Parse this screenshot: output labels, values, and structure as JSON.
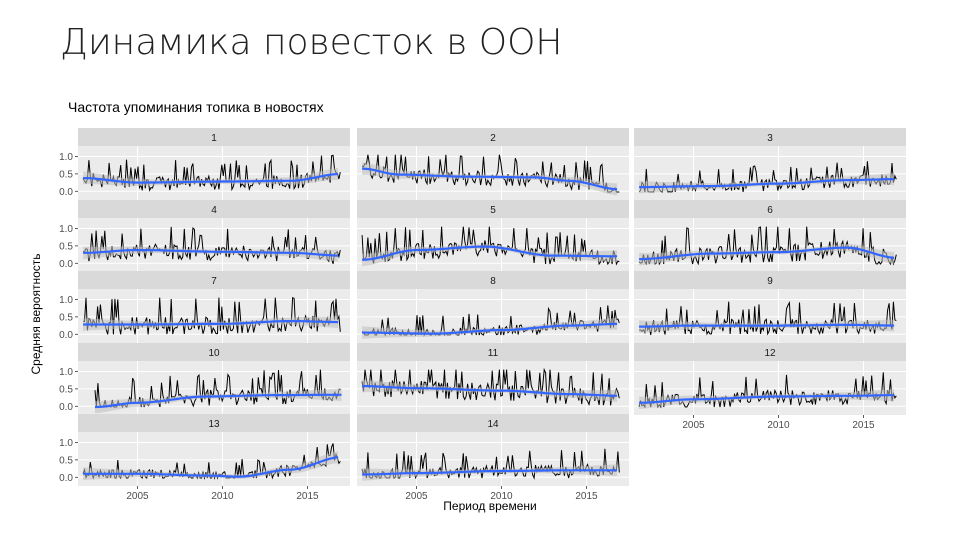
{
  "slide": {
    "title": "Динамика повесток в ООН"
  },
  "chart_data": {
    "type": "line",
    "title": "Частота упоминания топика в новостях",
    "xlabel": "Период времени",
    "ylabel": "Средняя вероятность",
    "xlim": [
      2001.5,
      2017.5
    ],
    "ylim": [
      -0.25,
      1.3
    ],
    "x_ticks": [
      2005,
      2010,
      2015
    ],
    "y_ticks": [
      0.0,
      0.5,
      1.0
    ],
    "y_tick_labels": [
      "0.0",
      "0.5",
      "1.0"
    ],
    "grid": true,
    "colors": {
      "raw": "#000000",
      "smooth": "#3366ff",
      "band": "#bdbdbd",
      "panel": "#ebebeb",
      "strip": "#d9d9d9"
    },
    "panels": [
      {
        "name": "1",
        "mean": 0.3,
        "amp": 0.28,
        "smooth": [
          [
            2001.8,
            0.38
          ],
          [
            2005,
            0.25
          ],
          [
            2010,
            0.28
          ],
          [
            2014,
            0.3
          ],
          [
            2017,
            0.5
          ]
        ]
      },
      {
        "name": "2",
        "mean": 0.4,
        "amp": 0.3,
        "smooth": [
          [
            2001.8,
            0.65
          ],
          [
            2004,
            0.48
          ],
          [
            2008,
            0.42
          ],
          [
            2012,
            0.4
          ],
          [
            2014,
            0.3
          ],
          [
            2017,
            0.05
          ]
        ]
      },
      {
        "name": "3",
        "mean": 0.25,
        "amp": 0.25,
        "smooth": [
          [
            2001.8,
            0.12
          ],
          [
            2006,
            0.15
          ],
          [
            2010,
            0.22
          ],
          [
            2014,
            0.32
          ],
          [
            2017,
            0.35
          ]
        ]
      },
      {
        "name": "4",
        "mean": 0.35,
        "amp": 0.3,
        "smooth": [
          [
            2001.8,
            0.3
          ],
          [
            2005,
            0.38
          ],
          [
            2010,
            0.33
          ],
          [
            2014,
            0.3
          ],
          [
            2017,
            0.22
          ]
        ]
      },
      {
        "name": "5",
        "mean": 0.35,
        "amp": 0.32,
        "smooth": [
          [
            2001.8,
            0.1
          ],
          [
            2005,
            0.38
          ],
          [
            2009,
            0.48
          ],
          [
            2013,
            0.22
          ],
          [
            2017,
            0.2
          ]
        ]
      },
      {
        "name": "6",
        "mean": 0.4,
        "amp": 0.35,
        "smooth": [
          [
            2001.8,
            0.12
          ],
          [
            2006,
            0.28
          ],
          [
            2010,
            0.32
          ],
          [
            2014,
            0.45
          ],
          [
            2017,
            0.15
          ]
        ]
      },
      {
        "name": "7",
        "mean": 0.35,
        "amp": 0.35,
        "smooth": [
          [
            2001.8,
            0.28
          ],
          [
            2005,
            0.28
          ],
          [
            2010,
            0.3
          ],
          [
            2014,
            0.38
          ],
          [
            2017,
            0.35
          ]
        ]
      },
      {
        "name": "8",
        "mean": 0.18,
        "amp": 0.25,
        "smooth": [
          [
            2001.8,
            0.05
          ],
          [
            2006,
            0.02
          ],
          [
            2010,
            0.12
          ],
          [
            2014,
            0.25
          ],
          [
            2017,
            0.3
          ]
        ]
      },
      {
        "name": "9",
        "mean": 0.28,
        "amp": 0.3,
        "smooth": [
          [
            2001.8,
            0.22
          ],
          [
            2005,
            0.25
          ],
          [
            2010,
            0.25
          ],
          [
            2014,
            0.27
          ],
          [
            2017,
            0.25
          ]
        ]
      },
      {
        "name": "10",
        "mean": 0.35,
        "amp": 0.32,
        "smooth": [
          [
            2002.5,
            -0.02
          ],
          [
            2005,
            0.1
          ],
          [
            2009,
            0.28
          ],
          [
            2013,
            0.32
          ],
          [
            2017,
            0.33
          ]
        ]
      },
      {
        "name": "11",
        "mean": 0.45,
        "amp": 0.35,
        "smooth": [
          [
            2001.8,
            0.58
          ],
          [
            2005,
            0.52
          ],
          [
            2010,
            0.45
          ],
          [
            2014,
            0.35
          ],
          [
            2017,
            0.3
          ]
        ]
      },
      {
        "name": "12",
        "mean": 0.28,
        "amp": 0.3,
        "smooth": [
          [
            2001.8,
            0.1
          ],
          [
            2005,
            0.2
          ],
          [
            2010,
            0.28
          ],
          [
            2014,
            0.3
          ],
          [
            2017,
            0.32
          ]
        ]
      },
      {
        "name": "13",
        "mean": 0.15,
        "amp": 0.22,
        "smooth": [
          [
            2001.8,
            0.1
          ],
          [
            2005,
            0.1
          ],
          [
            2009,
            0.05
          ],
          [
            2011,
            0.02
          ],
          [
            2014,
            0.22
          ],
          [
            2017,
            0.58
          ]
        ]
      },
      {
        "name": "14",
        "mean": 0.22,
        "amp": 0.28,
        "smooth": [
          [
            2001.8,
            0.08
          ],
          [
            2005,
            0.12
          ],
          [
            2010,
            0.18
          ],
          [
            2014,
            0.2
          ],
          [
            2017,
            0.2
          ]
        ]
      }
    ]
  }
}
